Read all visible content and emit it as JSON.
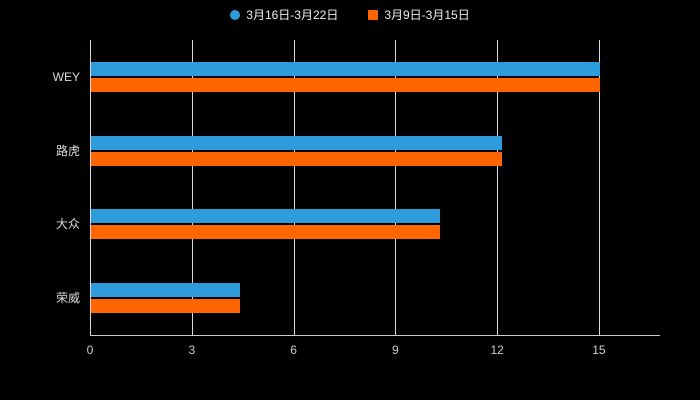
{
  "chart_data": {
    "type": "bar",
    "orientation": "horizontal",
    "title": "",
    "categories": [
      "WEY",
      "路虎",
      "大众",
      "荣威"
    ],
    "series": [
      {
        "name": "3月16日-3月22日",
        "color": "#2E9BDB",
        "values": [
          15,
          12.1,
          10.3,
          4.4
        ]
      },
      {
        "name": "3月9日-3月15日",
        "color": "#FF6600",
        "values": [
          15,
          12.1,
          10.3,
          4.4
        ]
      }
    ],
    "xlim": [
      0,
      16.8
    ],
    "ticks": [
      0,
      3,
      6,
      9,
      12,
      15
    ],
    "grid": true,
    "legend_position": "top",
    "background": "#000000",
    "text_color": "#cccccc",
    "xlabel": "",
    "ylabel": ""
  }
}
